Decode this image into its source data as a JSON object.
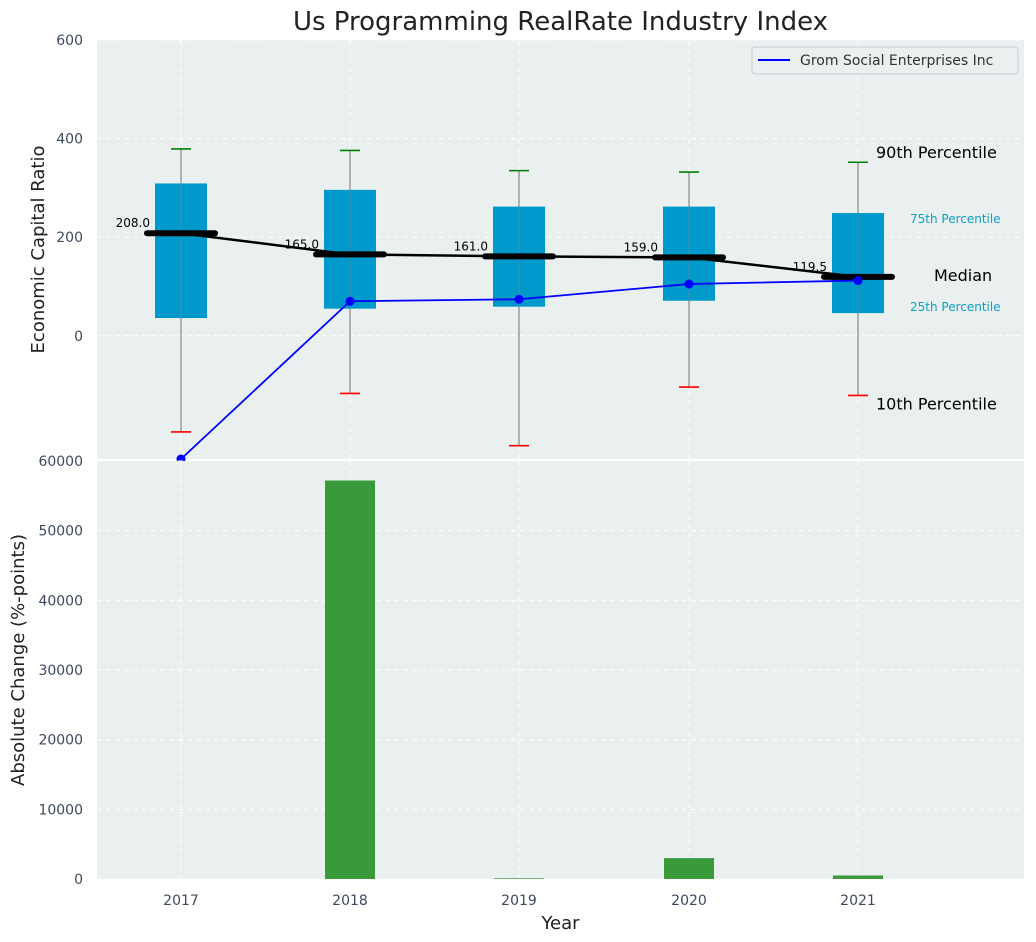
{
  "chart_data": [
    {
      "type": "box",
      "title": "Us Programming RealRate Industry Index",
      "ylabel": "Economic Capital Ratio",
      "categories": [
        "2017",
        "2018",
        "2019",
        "2020",
        "2021"
      ],
      "y_ticks": [
        0,
        200,
        400,
        600
      ],
      "ylim": [
        -250,
        600
      ],
      "grid": true,
      "legend_placement": "top-right",
      "percentiles": {
        "p10": [
          -195,
          -117,
          -223,
          -104,
          -121
        ],
        "p25": [
          36,
          55,
          59,
          71,
          46
        ],
        "median": [
          208.0,
          165.0,
          161.0,
          159.0,
          119.5
        ],
        "p75": [
          309,
          296,
          262,
          262,
          249
        ],
        "p90": [
          379,
          376,
          335,
          332,
          352
        ]
      },
      "median_labels": [
        "208.0",
        "165.0",
        "161.0",
        "159.0",
        "119.5"
      ],
      "series": [
        {
          "name": "Grom Social Enterprises Inc",
          "color": "#0000ff",
          "values": [
            -250,
            70,
            74,
            105,
            112
          ]
        }
      ],
      "annotations": {
        "p90": "90th Percentile",
        "p75": "75th Percentile",
        "median": "Median",
        "p25": "25th Percentile",
        "p10": "10th Percentile"
      },
      "colors": {
        "box": "#0099cc",
        "median": "#000000",
        "whisker_top": "#008000",
        "whisker_bottom": "#ff0000"
      }
    },
    {
      "type": "bar",
      "xlabel": "Year",
      "ylabel": "Absolute Change (%-points)",
      "categories": [
        "2017",
        "2018",
        "2019",
        "2020",
        "2021"
      ],
      "values": [
        0,
        57200,
        100,
        3000,
        500
      ],
      "y_ticks": [
        0,
        10000,
        20000,
        30000,
        40000,
        50000,
        60000
      ],
      "ylim": [
        0,
        60000
      ],
      "grid": true,
      "color": "#3a9a3a"
    }
  ]
}
